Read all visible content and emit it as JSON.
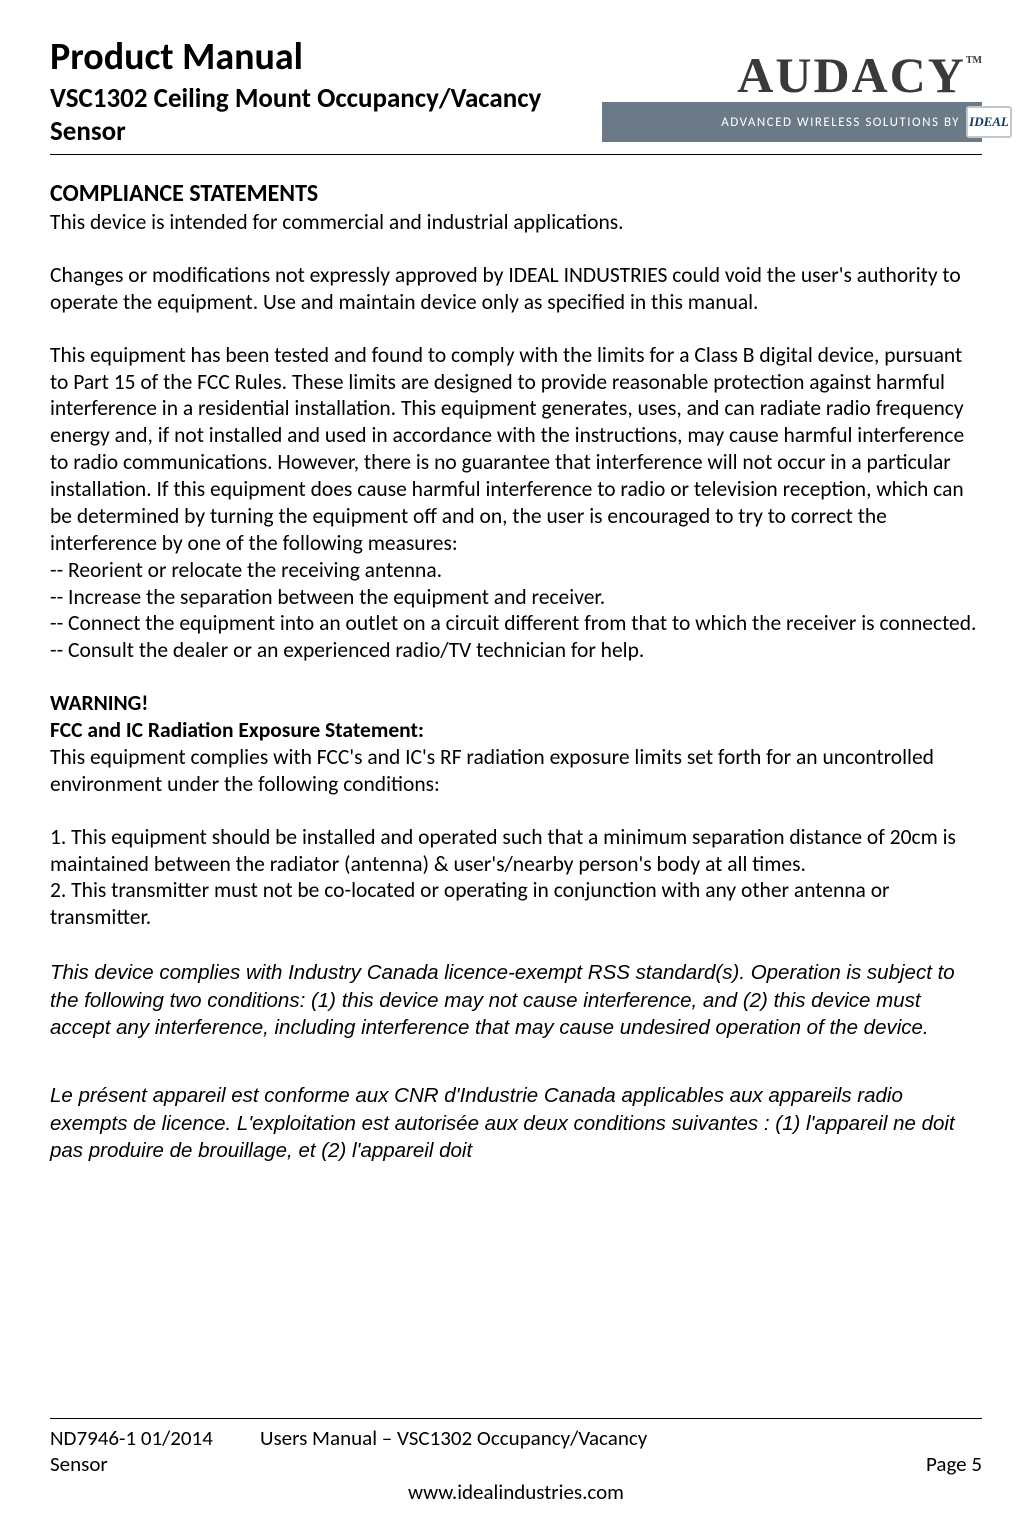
{
  "header": {
    "title": "Product Manual",
    "subtitle": "VSC1302 Ceiling Mount Occupancy/Vacancy Sensor",
    "logo_text": "AUDACY",
    "logo_tm": "TM",
    "tagline": "ADVANCED WIRELESS SOLUTIONS BY",
    "ideal_badge": "IDEAL"
  },
  "body": {
    "section_heading": "COMPLIANCE STATEMENTS",
    "p1": "This device is intended for commercial and industrial applications.",
    "p2": "Changes or modifications not expressly approved by IDEAL INDUSTRIES could void the user's authority to operate the equipment.  Use and maintain device only as specified in this manual.",
    "p3": "This equipment has been tested and found to comply with the limits for a Class B digital device, pursuant to Part 15 of the FCC Rules.  These limits are designed to provide reasonable protection against harmful interference in a residential installation. This equipment generates, uses, and can radiate radio frequency energy and, if not installed and used in accordance with the instructions, may cause harmful interference to radio communications.  However, there is no guarantee that interference will not occur in a particular installation.  If this equipment does cause harmful interference to radio or television reception, which can be determined by turning the equipment off and on, the user is encouraged to try to correct the interference by one of the following measures:",
    "m1": "-- Reorient or relocate the receiving antenna.",
    "m2": "-- Increase the separation between the equipment and receiver.",
    "m3": "-- Connect the equipment into an outlet on a circuit different from that to which the receiver is connected.",
    "m4": "-- Consult the dealer or an experienced radio/TV technician for help.",
    "warn_heading": "WARNING!",
    "warn_sub": "FCC and IC Radiation Exposure Statement:",
    "warn_p": "This equipment complies with FCC's and IC's RF radiation exposure limits set forth for an uncontrolled environment under the following conditions:",
    "n1": "1. This equipment should be installed and operated such that a minimum separation distance of 20cm is maintained between the radiator (antenna) & user's/nearby person's body at all times.",
    "n2": "2. This transmitter must not be co-located or operating in conjunction with any other antenna or transmitter.",
    "ic_en": "This device complies with Industry Canada licence-exempt RSS standard(s). Operation is subject to the following two conditions: (1) this device may not cause interference, and (2) this device must accept any interference, including interference that may cause undesired operation of the device.",
    "ic_fr": "Le présent appareil est conforme aux CNR d'Industrie Canada applicables aux appareils radio exempts de licence. L'exploitation est autorisée aux deux conditions suivantes : (1) l'appareil ne doit pas produire de brouillage, et (2) l'appareil doit"
  },
  "footer": {
    "doc_id": "ND7946-1  01/2014",
    "doc_label_line2": "Sensor",
    "center_title": "Users Manual – VSC1302 Occupancy/Vacancy",
    "page": "Page 5",
    "url": "www.idealindustries.com"
  }
}
